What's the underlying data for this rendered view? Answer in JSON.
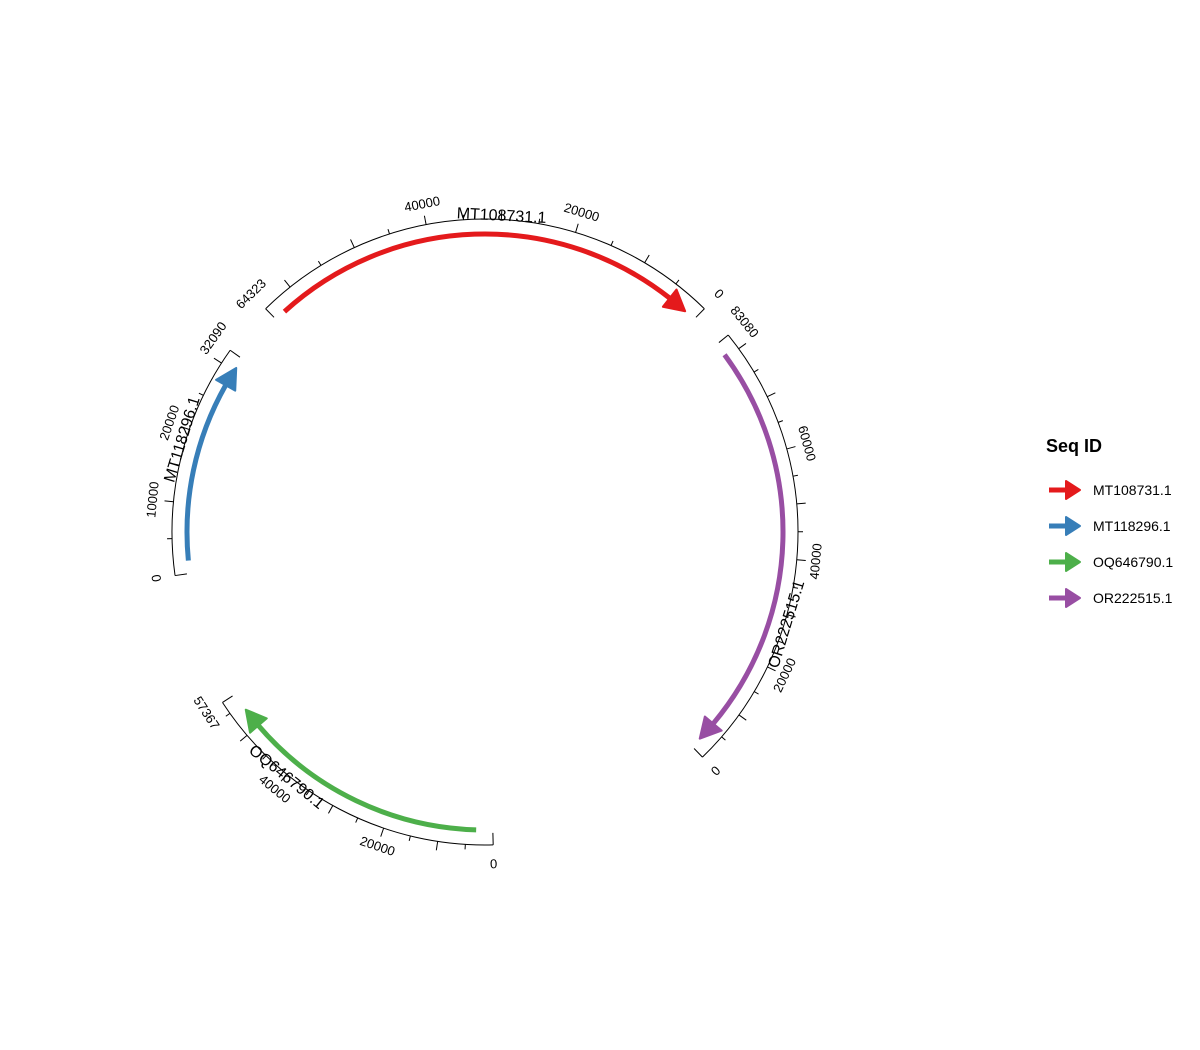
{
  "chart_data": {
    "type": "circular-genome",
    "legend": {
      "title": "Seq ID",
      "placement": "right",
      "items": [
        {
          "name": "MT108731.1",
          "color": "#E41A1C"
        },
        {
          "name": "MT118296.1",
          "color": "#377EB8"
        },
        {
          "name": "OQ646790.1",
          "color": "#4DAF4A"
        },
        {
          "name": "OR222515.1",
          "color": "#984EA3"
        }
      ]
    },
    "sequences": [
      {
        "id": "MT108731.1",
        "label": "MT108731.1",
        "length": 64323,
        "color": "#E41A1C",
        "strand": "reverse",
        "tick_labels": [
          "0",
          "20000",
          "40000",
          "64323"
        ],
        "tick_values": [
          0,
          20000,
          40000,
          64323
        ]
      },
      {
        "id": "OR222515.1",
        "label": "OR222515.1",
        "length": 83080,
        "color": "#984EA3",
        "strand": "reverse",
        "tick_labels": [
          "0",
          "20000",
          "40000",
          "60000",
          "83080"
        ],
        "tick_values": [
          0,
          20000,
          40000,
          60000,
          83080
        ]
      },
      {
        "id": "OQ646790.1",
        "label": "OQ646790.1",
        "length": 57367,
        "color": "#4DAF4A",
        "strand": "forward",
        "tick_labels": [
          "0",
          "20000",
          "40000",
          "57367"
        ],
        "tick_values": [
          0,
          20000,
          40000,
          57367
        ]
      },
      {
        "id": "MT118296.1",
        "label": "MT118296.1",
        "length": 32090,
        "color": "#377EB8",
        "strand": "forward",
        "tick_labels": [
          "0",
          "10000",
          "20000",
          "32090"
        ],
        "tick_values": [
          0,
          10000,
          20000,
          32090
        ]
      }
    ]
  }
}
